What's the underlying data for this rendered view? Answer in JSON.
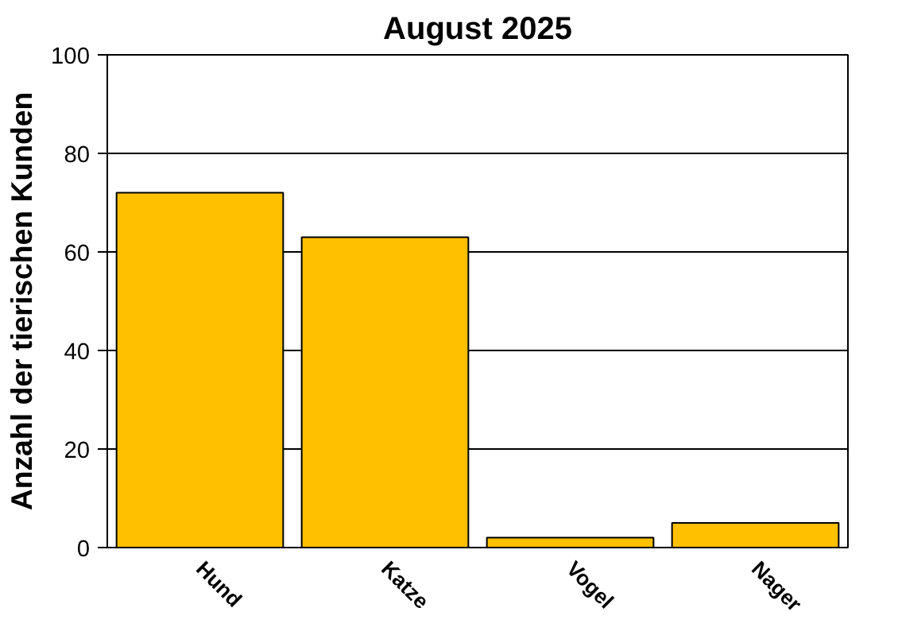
{
  "chart_data": {
    "type": "bar",
    "title": "August 2025",
    "ylabel": "Anzahl der tierischen Kunden",
    "categories": [
      "Hund",
      "Katze",
      "Vogel",
      "Nager"
    ],
    "values": [
      72,
      63,
      2,
      5
    ],
    "color": "#ffc000",
    "ylim": [
      0,
      100
    ],
    "yticks": [
      0,
      20,
      40,
      60,
      80,
      100
    ],
    "grid": "y"
  }
}
